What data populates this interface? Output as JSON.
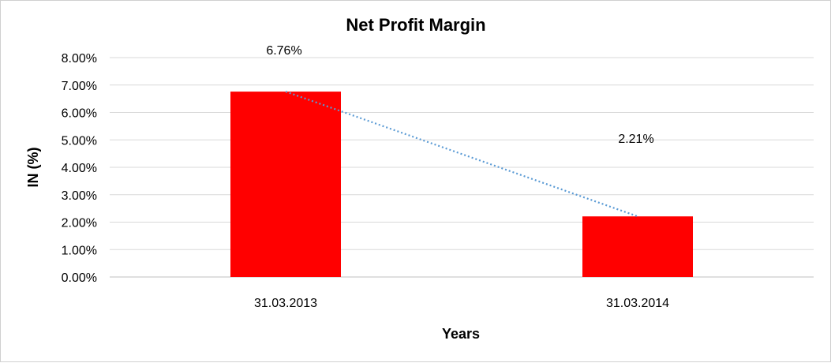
{
  "chart_data": {
    "type": "bar",
    "title": "Net Profit Margin",
    "xlabel": "Years",
    "ylabel": "IN (%)",
    "categories": [
      "31.03.2013",
      "31.03.2014"
    ],
    "values": [
      6.76,
      2.21
    ],
    "data_labels": [
      "6.76%",
      "2.21%"
    ],
    "ylim": [
      0,
      8
    ],
    "yticks": [
      0,
      1,
      2,
      3,
      4,
      5,
      6,
      7,
      8
    ],
    "ytick_labels": [
      "0.00%",
      "1.00%",
      "2.00%",
      "3.00%",
      "4.00%",
      "5.00%",
      "6.00%",
      "7.00%",
      "8.00%"
    ],
    "grid": true,
    "legend": "none",
    "trendline": "linear dotted",
    "colors": {
      "bar": "#ff0000",
      "trendline": "#5b9bd5",
      "grid": "#d9d9d9"
    }
  }
}
